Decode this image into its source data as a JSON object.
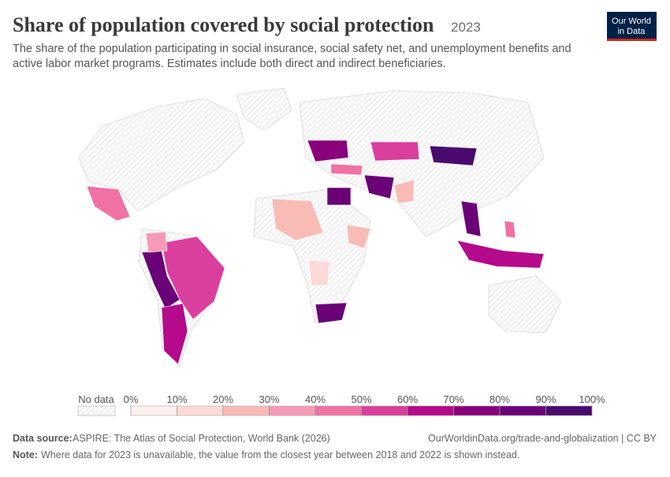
{
  "header": {
    "title": "Share of population covered by social protection",
    "year": "2023",
    "subtitle": [
      "The share of the population participating in social insurance, social safety net, and unemployment benefits and",
      "active labor market programs. Estimates include both direct and indirect beneficiaries."
    ],
    "logo": [
      "Our World",
      "in Data"
    ]
  },
  "legend": {
    "no_data": "No data",
    "ticks": [
      {
        "value": 0,
        "label": "0%"
      },
      {
        "value": 10,
        "label": "10%"
      },
      {
        "value": 20,
        "label": "20%"
      },
      {
        "value": 30,
        "label": "30%"
      },
      {
        "value": 40,
        "label": "40%"
      },
      {
        "value": 50,
        "label": "50%"
      },
      {
        "value": 60,
        "label": "60%"
      },
      {
        "value": 70,
        "label": "70%"
      },
      {
        "value": 80,
        "label": "80%"
      },
      {
        "value": 90,
        "label": "90%"
      },
      {
        "value": 100,
        "label": "100%"
      }
    ],
    "colors": [
      "#fdf1ef",
      "#fbdad7",
      "#f9bbb5",
      "#f59bb7",
      "#f071a4",
      "#db3f9d",
      "#b40a8b",
      "#8a017c",
      "#6a0177",
      "#4a0a6e"
    ]
  },
  "footer": {
    "source_label": "Data source:",
    "source": "ASPIRE: The Atlas of Social Protection, World Bank (2026)",
    "url": "OurWorldinData.org/trade-and-globalization | CC BY",
    "note_label": "Note:",
    "note": "Where data for 2023 is unavailable, the value from the closest year between 2018 and 2022 is shown instead."
  }
}
